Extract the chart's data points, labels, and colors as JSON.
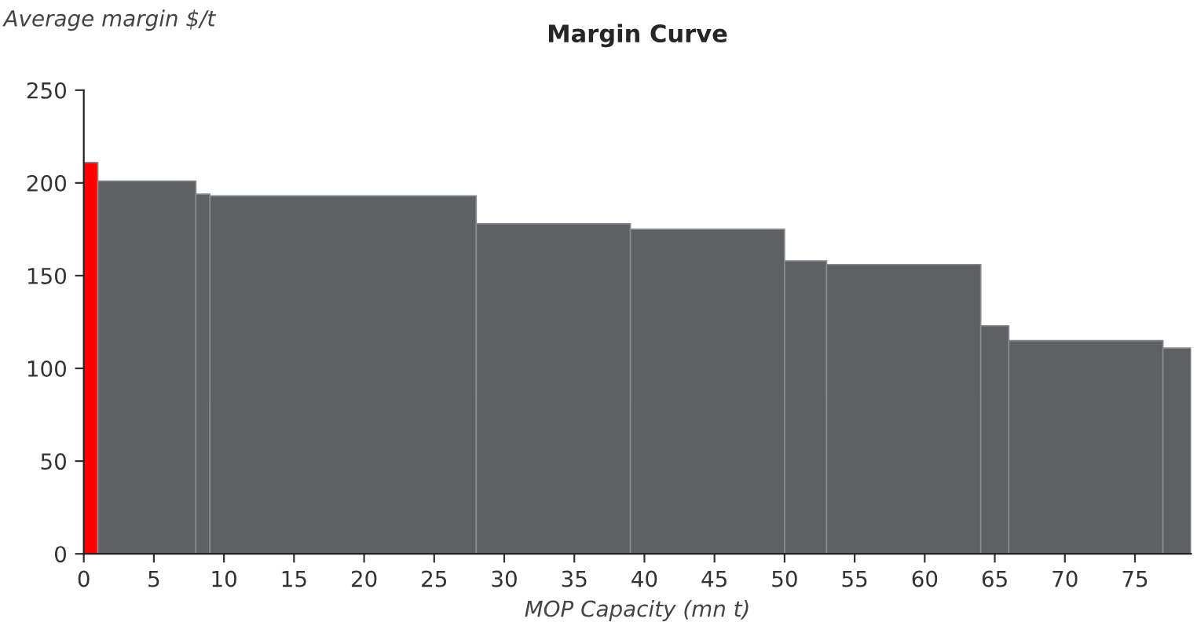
{
  "chart_data": {
    "type": "histogram",
    "title": "Margin Curve",
    "ylabel": "Average margin $/t",
    "xlabel": "MOP Capacity (mn t)",
    "bins": [
      0,
      1,
      8,
      9,
      28,
      39,
      50,
      53,
      64,
      66,
      77,
      79
    ],
    "values": [
      211,
      201,
      194,
      193,
      178,
      175,
      158,
      156,
      123,
      115,
      111
    ],
    "colors": [
      "#ff0000",
      "#5f6064",
      "#5f6064",
      "#5f6064",
      "#5f6064",
      "#5f6064",
      "#5f6064",
      "#5f6064",
      "#5f6064",
      "#5f6064",
      "#5f6064"
    ],
    "xlim": [
      0,
      79
    ],
    "xticks": [
      0,
      5,
      10,
      15,
      20,
      25,
      30,
      35,
      40,
      45,
      50,
      55,
      60,
      65,
      70,
      75
    ],
    "ylim": [
      0,
      250
    ],
    "yticks": [
      0,
      50,
      100,
      150,
      200,
      250
    ],
    "grid": false
  }
}
